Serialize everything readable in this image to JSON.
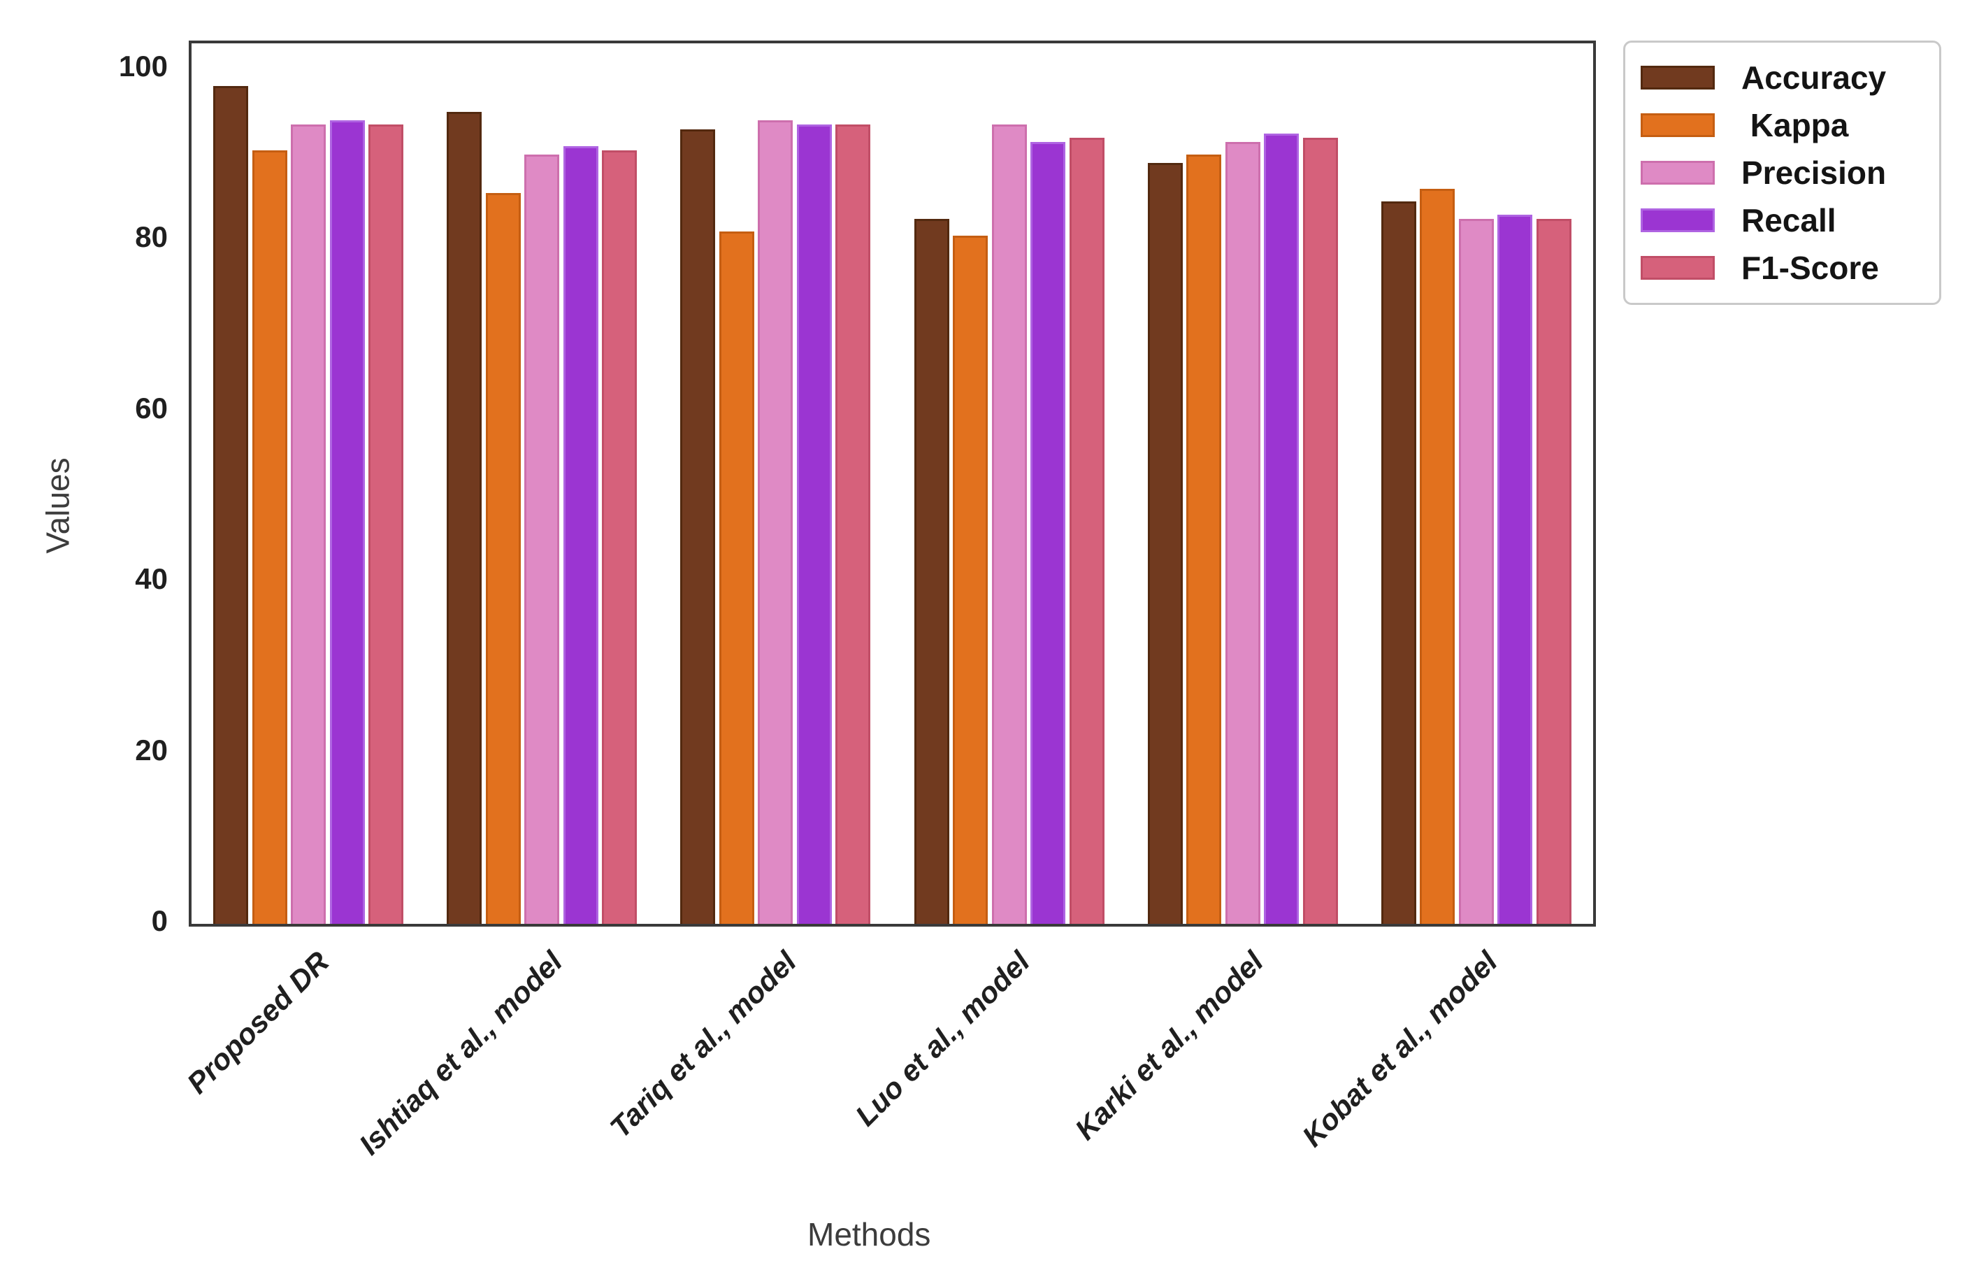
{
  "chart_data": {
    "type": "bar",
    "title": "",
    "xlabel": "Methods",
    "ylabel": "Values",
    "categories": [
      "Proposed DR",
      "Ishtiaq et al., model",
      "Tariq et al., model",
      "Luo et al., model",
      "Karki et al., model",
      "Kobat et al., model"
    ],
    "series": [
      {
        "name": "Accuracy",
        "color": "#713A1F",
        "edge_color": "#53290F",
        "values": [
          98,
          95,
          93,
          82.5,
          89,
          84.5
        ]
      },
      {
        "name": "Kappa",
        "color": "#E2711E",
        "edge_color": "#C55E12",
        "values": [
          90.5,
          85.5,
          81,
          80.5,
          90,
          86
        ]
      },
      {
        "name": "Precision",
        "color": "#DF8AC5",
        "edge_color": "#CD6FAD",
        "values": [
          93.5,
          90,
          94,
          93.5,
          91.5,
          82.5
        ]
      },
      {
        "name": "Recall",
        "color": "#9B35D2",
        "edge_color": "#AF64E2",
        "values": [
          94,
          91,
          93.5,
          91.5,
          92.5,
          83
        ]
      },
      {
        "name": "F1-Score",
        "color": "#D6617B",
        "edge_color": "#C14E67",
        "values": [
          93.5,
          90.5,
          93.5,
          92,
          92,
          82.5
        ]
      }
    ],
    "ylim": [
      0,
      103
    ],
    "yticks": [
      0,
      20,
      40,
      60,
      80,
      100
    ],
    "grid": false,
    "legend_position": "outside upper right",
    "legend_labels": [
      "Accuracy",
      " Kappa",
      "Precision",
      "Recall",
      "F1-Score"
    ],
    "bar_orientation": "vertical",
    "category_label_rotation_deg": 45
  }
}
